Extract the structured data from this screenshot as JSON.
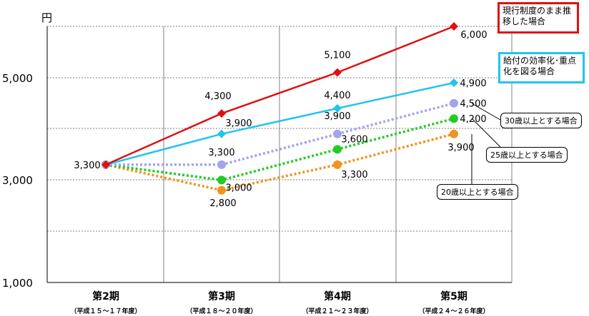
{
  "chart_data": {
    "type": "line",
    "unit": "円",
    "categories": [
      "第2期",
      "第3期",
      "第4期",
      "第5期"
    ],
    "category_sublabels": [
      "（平成１５～１７年度）",
      "（平成１８～２０年度）",
      "（平成２１～２３年度）",
      "（平成２４～２６年度）"
    ],
    "y_ticks": [
      "1,000",
      "3,000",
      "5,000"
    ],
    "ylim": [
      1000,
      6000
    ],
    "grid": true,
    "series": [
      {
        "name": "現行制度のまま推移した場合",
        "color": "#dd1111",
        "style": "solid",
        "marker": "diamond",
        "values": [
          3300,
          4300,
          5100,
          6000
        ],
        "labels": [
          "3,300",
          "4,300",
          "5,100",
          "6,000"
        ]
      },
      {
        "name": "給付の効率化･重点化を図る場合",
        "color": "#22c4ee",
        "style": "solid",
        "marker": "diamond",
        "values": [
          3300,
          3900,
          4400,
          4900
        ],
        "labels": [
          "",
          "3,900",
          "4,400",
          "4,900"
        ]
      },
      {
        "name": "30歳以上とする場合",
        "color": "#a3a3ee",
        "style": "dotted",
        "marker": "circle",
        "values": [
          3300,
          3300,
          3900,
          4500
        ],
        "labels": [
          "",
          "3,300",
          "3,900",
          "4,500"
        ]
      },
      {
        "name": "25歳以上とする場合",
        "color": "#22cc22",
        "style": "dotted",
        "marker": "circle",
        "values": [
          3300,
          3000,
          3600,
          4200
        ],
        "labels": [
          "",
          "3,000",
          "3,600",
          "4,200"
        ]
      },
      {
        "name": "20歳以上とする場合",
        "color": "#f0941e",
        "style": "dotted",
        "marker": "circle",
        "values": [
          3300,
          2800,
          3300,
          3900
        ],
        "labels": [
          "",
          "2,800",
          "3,300",
          "3,900"
        ]
      }
    ]
  }
}
